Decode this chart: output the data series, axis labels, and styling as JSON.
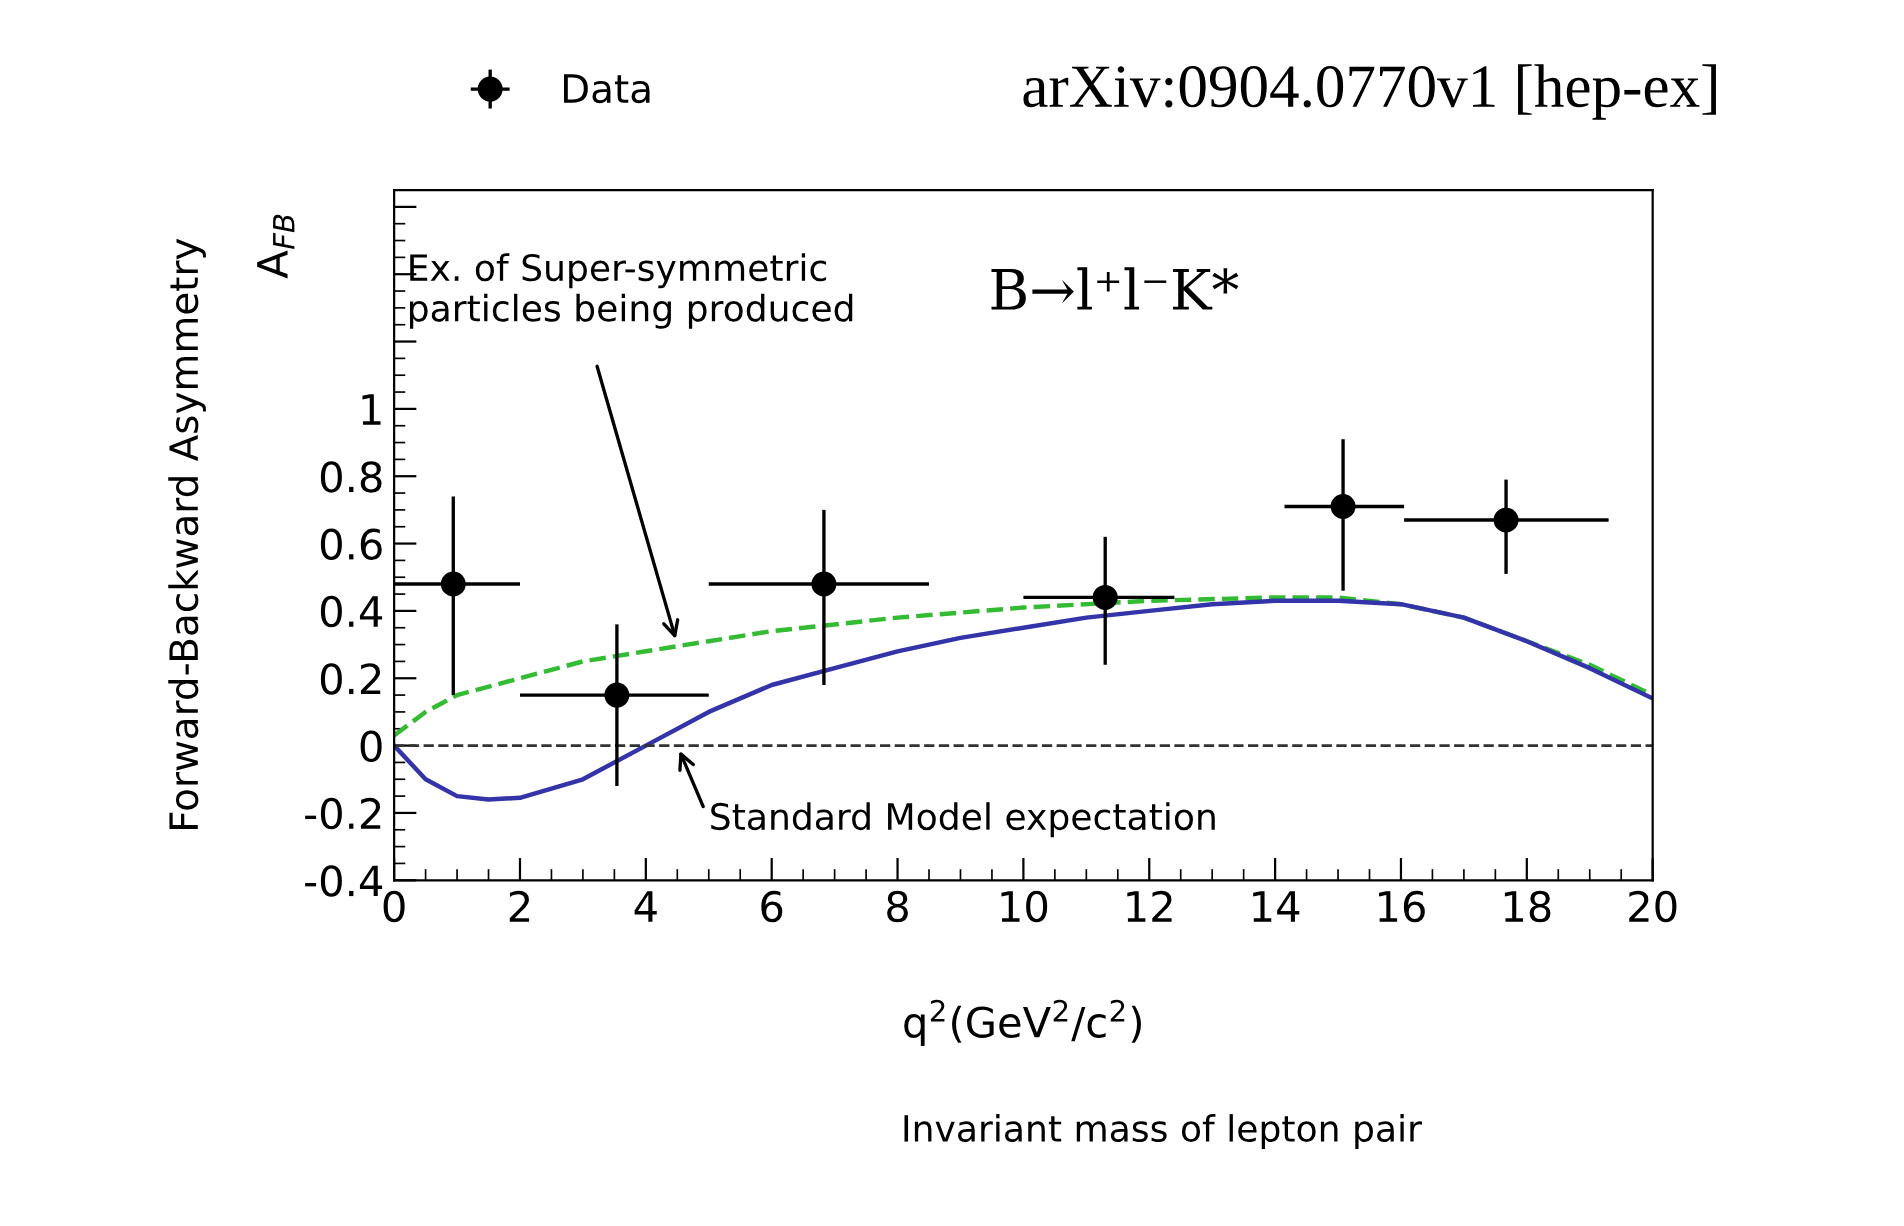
{
  "chart_data": {
    "type": "line",
    "xlabel": "q$^{2}$(GeV$^{2}$/c$^{2}$)",
    "ylabel": "Forward-Backward Asymmetry",
    "subtitle": "A$_{FB}$",
    "xlim": [
      0,
      20
    ],
    "xticks": [
      0,
      2,
      4,
      6,
      8,
      10,
      12,
      14,
      16,
      18,
      20
    ],
    "ylim": [
      -0.4,
      1.65
    ],
    "yticks": [
      {
        "value": -0.4,
        "label": "-0.4"
      },
      {
        "value": -0.2,
        "label": "-0.2"
      },
      0,
      0.2,
      0.4,
      0.6,
      0.8,
      1,
      {
        "value": 1.2,
        "label": null
      },
      {
        "value": 1.4,
        "label": null
      },
      {
        "value": 1.6,
        "label": null
      }
    ],
    "series": [
      {
        "name": "Data",
        "type": "scatter",
        "color": "#000000",
        "marker": "circle",
        "x": [
          0.94,
          3.54,
          6.83,
          11.3,
          15.08,
          17.67
        ],
        "values": [
          0.48,
          0.15,
          0.48,
          0.44,
          0.71,
          0.67
        ],
        "errors": [
          [
            0.15,
            0.74
          ],
          [
            -0.12,
            0.36
          ],
          [
            0.18,
            0.7
          ],
          [
            0.24,
            0.62
          ],
          [
            0.46,
            0.91
          ],
          [
            0.51,
            0.79
          ]
        ],
        "xerrors": [
          [
            0,
            2
          ],
          [
            2,
            5
          ],
          [
            5,
            8.5
          ],
          [
            10,
            12.4
          ],
          [
            14.15,
            16.05
          ],
          [
            16.05,
            19.3
          ]
        ]
      },
      {
        "color": "#33bb33",
        "line_style": "dashed",
        "x": [
          0,
          0.5,
          1,
          2,
          3,
          4,
          5,
          6,
          8,
          10,
          12,
          14,
          15,
          16,
          17,
          18,
          19,
          20
        ],
        "values": [
          0.03,
          0.1,
          0.15,
          0.2,
          0.25,
          0.28,
          0.31,
          0.34,
          0.38,
          0.41,
          0.43,
          0.44,
          0.44,
          0.42,
          0.38,
          0.31,
          0.24,
          0.15
        ]
      },
      {
        "color": "#3333aa",
        "line_style": "solid",
        "x": [
          0,
          0.5,
          1,
          1.5,
          2,
          3,
          4,
          5,
          6,
          7,
          8,
          9,
          10,
          11,
          12,
          13,
          14,
          15,
          16,
          17,
          18,
          19,
          20
        ],
        "values": [
          0,
          -0.1,
          -0.15,
          -0.16,
          -0.155,
          -0.1,
          0,
          0.1,
          0.18,
          0.23,
          0.28,
          0.32,
          0.35,
          0.38,
          0.4,
          0.42,
          0.43,
          0.43,
          0.42,
          0.38,
          0.31,
          0.23,
          0.14
        ]
      }
    ],
    "ref_lines": [
      {
        "axis": "y",
        "value": 0,
        "color": "#333333",
        "line_style": "dashed"
      }
    ],
    "annotations": [
      {
        "text": "Ex. of Super-symmetric\nparticles being produced",
        "x": 4.5,
        "y": 0.3
      },
      {
        "text": "Standard Model expectation",
        "x": 4.5,
        "y": 0
      },
      "B→l⁺l⁻K*",
      "arXiv:0904.0770v1 [hep-ex]",
      "Invariant mass of lepton pair"
    ],
    "legend": "top",
    "grid": false
  }
}
